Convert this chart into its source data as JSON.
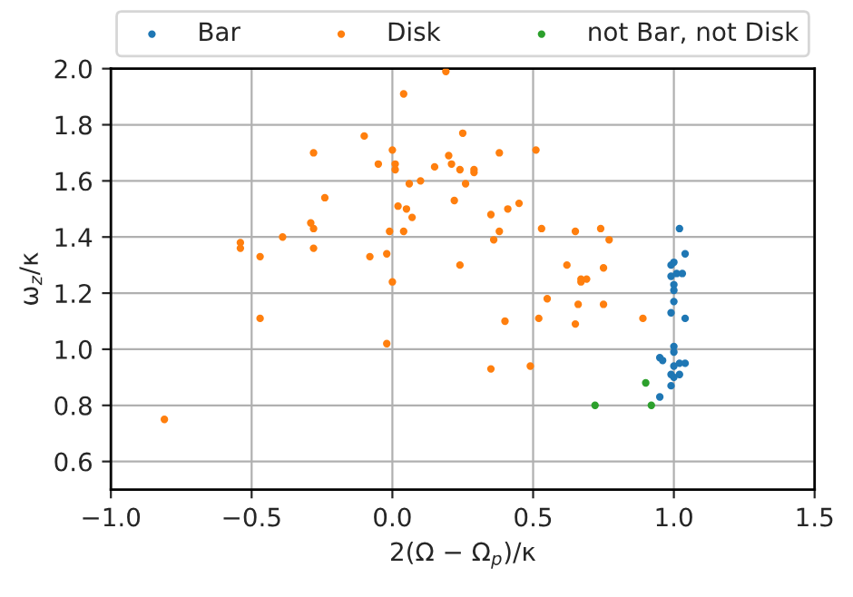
{
  "chart_data": {
    "type": "scatter",
    "xlabel": "2(Ω − Ω$_{p}$)/κ",
    "ylabel": "ω$_{z}$/κ",
    "xlim": [
      -1.0,
      1.5
    ],
    "xticks": [
      {
        "value": -1.0,
        "label": "−1.0"
      },
      {
        "value": -0.5,
        "label": "−0.5"
      },
      {
        "value": 0.0,
        "label": "0.0"
      },
      {
        "value": 0.5,
        "label": "0.5"
      },
      {
        "value": 1.0,
        "label": "1.0"
      },
      {
        "value": 1.5,
        "label": "1.5"
      }
    ],
    "ylim": [
      0.5,
      2.0
    ],
    "yticks": [
      {
        "value": 0.6,
        "label": "0.6"
      },
      {
        "value": 0.8,
        "label": "0.8"
      },
      {
        "value": 1.0,
        "label": "1.0"
      },
      {
        "value": 1.2,
        "label": "1.2"
      },
      {
        "value": 1.4,
        "label": "1.4"
      },
      {
        "value": 1.6,
        "label": "1.6"
      },
      {
        "value": 1.8,
        "label": "1.8"
      },
      {
        "value": 2.0,
        "label": "2.0"
      }
    ],
    "grid": true,
    "legend": "top",
    "marker": "circle",
    "series": [
      {
        "name": "Bar",
        "color": "#1f77b4",
        "x": [
          1.02,
          1.04,
          1.0,
          0.99,
          0.99,
          1.01,
          1.03,
          1.0,
          1.0,
          1.0,
          0.99,
          1.04,
          1.0,
          1.0,
          0.95,
          0.96,
          1.02,
          1.04,
          1.0,
          0.99,
          1.02,
          1.0,
          0.99,
          0.95
        ],
        "values": [
          1.43,
          1.34,
          1.31,
          1.3,
          1.26,
          1.27,
          1.27,
          1.23,
          1.21,
          1.17,
          1.13,
          1.11,
          1.01,
          0.99,
          0.97,
          0.96,
          0.95,
          0.95,
          0.94,
          0.91,
          0.91,
          0.9,
          0.87,
          0.83
        ]
      },
      {
        "name": "Disk",
        "color": "#ff7f0e",
        "x": [
          -0.81,
          -0.54,
          -0.54,
          -0.47,
          -0.47,
          -0.39,
          -0.29,
          -0.28,
          -0.28,
          -0.28,
          -0.24,
          -0.1,
          -0.08,
          -0.05,
          -0.02,
          -0.02,
          -0.01,
          0.0,
          0.0,
          0.01,
          0.01,
          0.02,
          0.04,
          0.04,
          0.05,
          0.06,
          0.07,
          0.1,
          0.15,
          0.19,
          0.2,
          0.21,
          0.22,
          0.24,
          0.24,
          0.25,
          0.26,
          0.29,
          0.29,
          0.35,
          0.35,
          0.36,
          0.38,
          0.38,
          0.4,
          0.41,
          0.45,
          0.49,
          0.51,
          0.52,
          0.53,
          0.55,
          0.62,
          0.65,
          0.65,
          0.66,
          0.67,
          0.69,
          0.67,
          0.74,
          0.75,
          0.75,
          0.77,
          0.89
        ],
        "values": [
          0.75,
          1.38,
          1.36,
          1.33,
          1.11,
          1.4,
          1.45,
          1.43,
          1.7,
          1.36,
          1.54,
          1.76,
          1.33,
          1.66,
          1.34,
          1.02,
          1.42,
          1.71,
          1.24,
          1.66,
          1.64,
          1.51,
          1.91,
          1.42,
          1.5,
          1.59,
          1.47,
          1.6,
          1.65,
          1.99,
          1.69,
          1.66,
          1.53,
          1.3,
          1.64,
          1.77,
          1.59,
          1.63,
          1.64,
          1.48,
          0.93,
          1.39,
          1.7,
          1.42,
          1.1,
          1.5,
          1.52,
          0.94,
          1.71,
          1.11,
          1.43,
          1.18,
          1.3,
          1.42,
          1.09,
          1.16,
          1.25,
          1.25,
          1.24,
          1.43,
          1.29,
          1.16,
          1.39,
          1.11
        ]
      },
      {
        "name": "not Bar, not Disk",
        "color": "#2ca02c",
        "x": [
          0.9,
          0.72,
          0.92
        ],
        "values": [
          0.88,
          0.8,
          0.8
        ]
      }
    ]
  }
}
